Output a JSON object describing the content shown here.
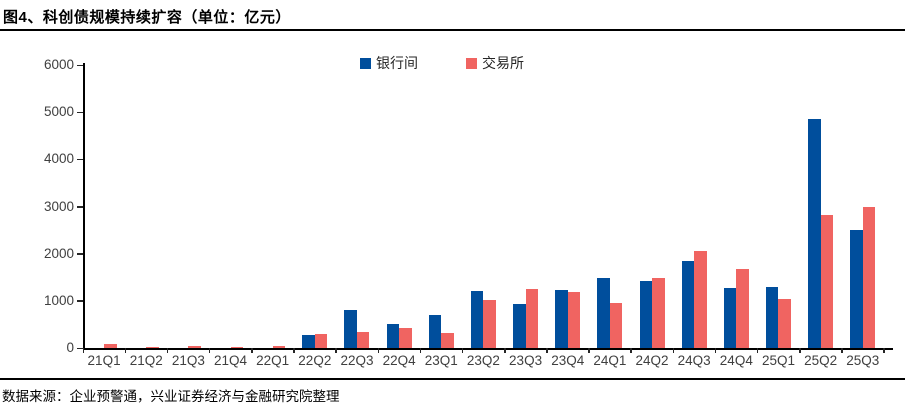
{
  "page": {
    "title": "图4、科创债规模持续扩容（单位：亿元）",
    "footer": "数据来源：企业预警通，兴业证券经济与金融研究院整理"
  },
  "colors": {
    "interbank_blue": "#004E9C",
    "exchange_red": "#F06461",
    "axis_black": "#000000",
    "tick_label_gray": "#3F3F3F"
  },
  "chart_data": {
    "type": "bar",
    "title": "图4、科创债规模持续扩容（单位：亿元）",
    "unit": "亿元",
    "categories": [
      "21Q1",
      "21Q2",
      "21Q3",
      "21Q4",
      "22Q1",
      "22Q2",
      "22Q3",
      "22Q4",
      "23Q1",
      "23Q2",
      "23Q3",
      "23Q4",
      "24Q1",
      "24Q2",
      "24Q3",
      "24Q4",
      "25Q1",
      "25Q2",
      "25Q3"
    ],
    "series": [
      {
        "key": "interbank",
        "name": "银行间",
        "color": "#004E9C",
        "values": [
          0,
          0,
          0,
          0,
          0,
          270,
          800,
          510,
          690,
          1200,
          930,
          1230,
          1480,
          1420,
          1850,
          1280,
          1300,
          4850,
          2500
        ]
      },
      {
        "key": "exchange",
        "name": "交易所",
        "color": "#F06461",
        "values": [
          80,
          20,
          50,
          30,
          50,
          300,
          340,
          420,
          320,
          1010,
          1250,
          1180,
          960,
          1480,
          2050,
          1680,
          1030,
          2820,
          3000
        ]
      }
    ],
    "xlabel": "",
    "ylabel": "",
    "ylim": [
      0,
      6000
    ],
    "yticks": [
      0,
      1000,
      2000,
      3000,
      4000,
      5000,
      6000
    ],
    "grid": false,
    "legend_position": "top-center"
  }
}
